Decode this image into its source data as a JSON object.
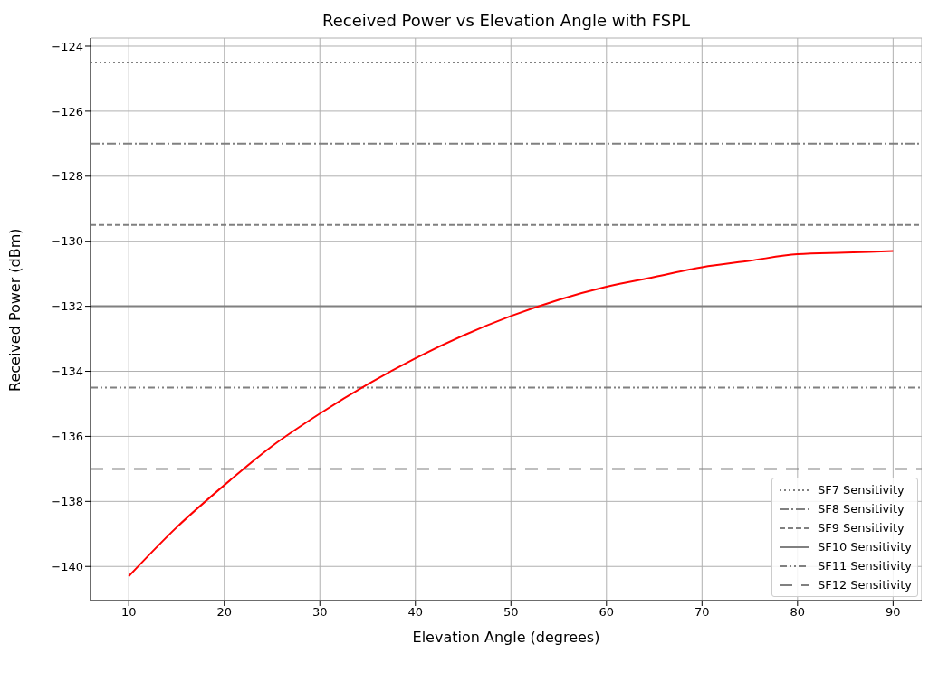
{
  "chart_data": {
    "type": "line",
    "title": "Received Power vs Elevation Angle with FSPL",
    "xlabel": "Elevation Angle (degrees)",
    "ylabel": "Received Power (dBm)",
    "x": [
      10,
      15,
      20,
      25,
      30,
      35,
      40,
      45,
      50,
      55,
      60,
      65,
      70,
      75,
      80,
      85,
      90
    ],
    "series": [
      {
        "color": "#ff0000",
        "values": [
          -140.3,
          -138.8,
          -137.5,
          -136.3,
          -135.3,
          -134.4,
          -133.6,
          -132.9,
          -132.3,
          -131.8,
          -131.4,
          -131.1,
          -130.8,
          -130.6,
          -130.4,
          -130.35,
          -130.3
        ]
      }
    ],
    "xlim": [
      6,
      93
    ],
    "xticks": [
      10,
      20,
      30,
      40,
      50,
      60,
      70,
      80,
      90
    ],
    "ylim": [
      -141.05,
      -123.75
    ],
    "yticks": [
      -140,
      -138,
      -136,
      -134,
      -132,
      -130,
      -128,
      -126,
      -124
    ],
    "ref_lines": [
      {
        "axis": "y",
        "value": -124.5,
        "label": "SF7 Sensitivity",
        "color": "#808080",
        "line_style": "dotted"
      },
      {
        "axis": "y",
        "value": -127,
        "label": "SF8 Sensitivity",
        "color": "#808080",
        "line_style": "dashdot"
      },
      {
        "axis": "y",
        "value": -129.5,
        "label": "SF9 Sensitivity",
        "color": "#808080",
        "line_style": "dashed"
      },
      {
        "axis": "y",
        "value": -132,
        "label": "SF10 Sensitivity",
        "color": "#808080",
        "line_style": "solid"
      },
      {
        "axis": "y",
        "value": -134.5,
        "label": "SF11 Sensitivity",
        "color": "#808080",
        "line_style": "dashdotdot"
      },
      {
        "axis": "y",
        "value": -137,
        "label": "SF12 Sensitivity",
        "color": "#808080",
        "line_style": "longdash"
      }
    ],
    "grid": true,
    "legend": "bottom right",
    "marker": "none",
    "line_style": "solid"
  }
}
